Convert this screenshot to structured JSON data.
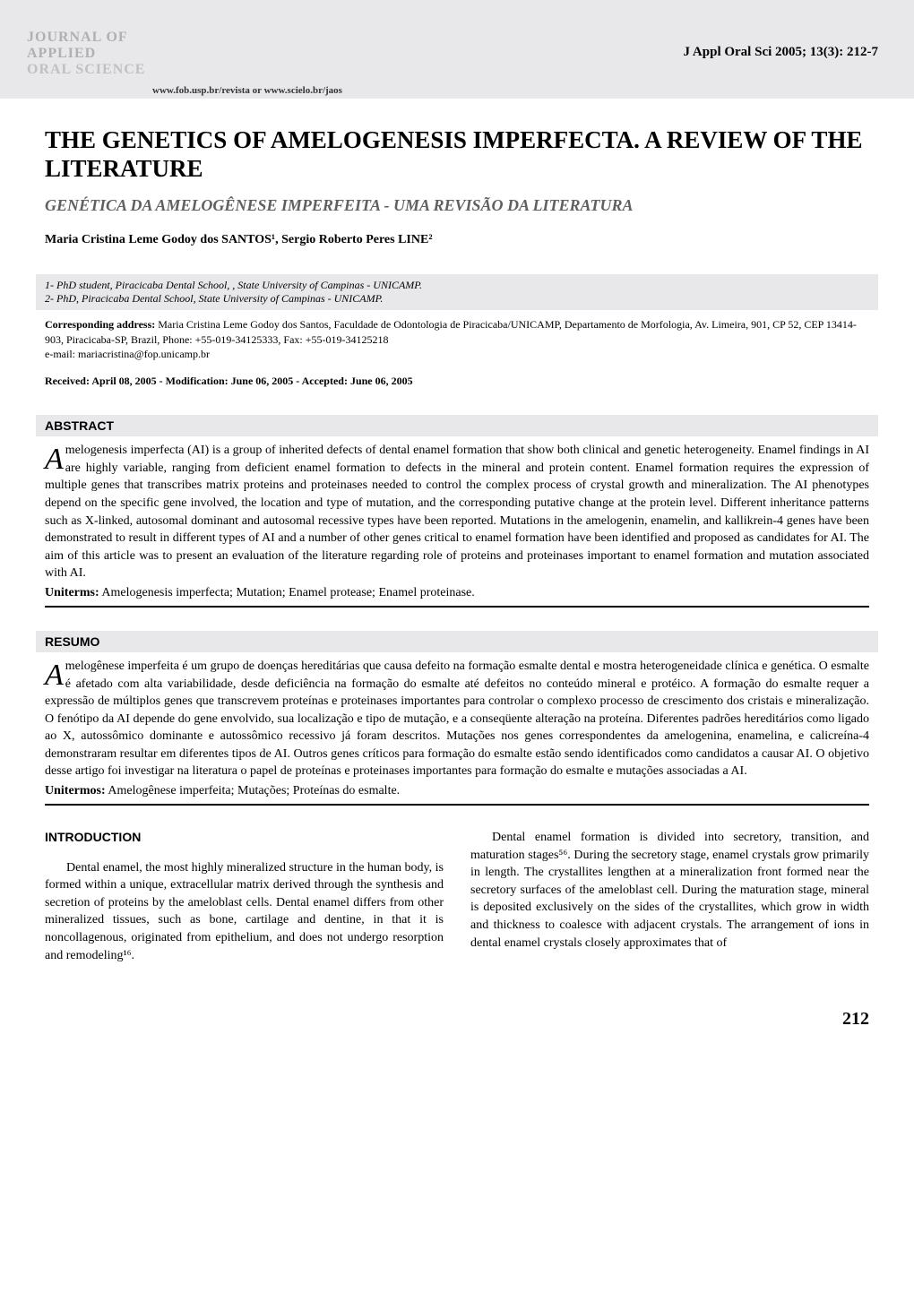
{
  "header": {
    "logo_line1": "JOURNAL OF",
    "logo_line2": "APPLIED",
    "logo_line3": "ORAL SCIENCE",
    "citation": "J Appl Oral Sci 2005; 13(3): 212-7",
    "url": "www.fob.usp.br/revista or www.scielo.br/jaos",
    "colors": {
      "band_bg": "#e8e8ea",
      "logo_gray": "#b0b0b0"
    }
  },
  "title": "THE GENETICS OF AMELOGENESIS IMPERFECTA. A REVIEW OF THE LITERATURE",
  "subtitle": "GENÉTICA DA AMELOGÊNESE IMPERFEITA - UMA REVISÃO DA LITERATURA",
  "authors": "Maria Cristina Leme Godoy dos SANTOS¹, Sergio Roberto Peres LINE²",
  "affiliations": [
    "1- PhD student, Piracicaba Dental School, , State University of Campinas  - UNICAMP.",
    "2- PhD, Piracicaba Dental School, State University of Campinas - UNICAMP."
  ],
  "corresponding": {
    "label": "Corresponding address:",
    "text": " Maria Cristina Leme Godoy dos Santos, Faculdade de Odontologia de Piracicaba/UNICAMP, Departamento de Morfologia, Av. Limeira, 901, CP 52, CEP 13414-903, Piracicaba-SP, Brazil, Phone: +55-019-34125333,  Fax: +55-019-34125218",
    "email": "e-mail: mariacristina@fop.unicamp.br"
  },
  "dates": "Received: April 08, 2005 - Modification: June 06, 2005 - Accepted: June 06, 2005",
  "abstract": {
    "header": "ABSTRACT",
    "body": "melogenesis imperfecta (AI) is a group of inherited defects of dental enamel formation that show both clinical and genetic heterogeneity. Enamel findings in AI are highly variable, ranging from deficient enamel formation to defects in the mineral and protein content. Enamel formation requires the expression of multiple genes that transcribes matrix proteins and proteinases needed to control the complex process of crystal growth and mineralization. The AI phenotypes depend on the specific gene involved, the location and type of mutation, and the corresponding putative change at the protein level. Different inheritance patterns such as X-linked, autosomal dominant and autosomal recessive types have been reported. Mutations in the amelogenin, enamelin, and kallikrein-4 genes have been demonstrated to result in different types of AI and a number of other genes critical to enamel formation have been identified and proposed as candidates for AI. The aim of this article was to present an evaluation of the literature regarding role of proteins and proteinases important to enamel formation and mutation associated with AI.",
    "uniterms_label": "Uniterms:",
    "uniterms": " Amelogenesis imperfecta; Mutation; Enamel protease; Enamel proteinase."
  },
  "resumo": {
    "header": "RESUMO",
    "body": "melogênese imperfeita é um grupo de doenças hereditárias que causa defeito na formação esmalte dental e mostra heterogeneidade clínica e genética. O esmalte é afetado com alta variabilidade, desde deficiência na formação do esmalte até defeitos no conteúdo mineral e protéico. A formação do esmalte requer a expressão de múltiplos genes que transcrevem proteínas e proteinases importantes para controlar o complexo processo de crescimento dos cristais e mineralização. O fenótipo da AI depende do gene envolvido, sua localização e tipo de mutação, e a conseqüente alteração na proteína. Diferentes padrões hereditários como ligado ao X, autossômico dominante e autossômico recessivo já foram descritos. Mutações nos genes correspondentes da amelogenina, enamelina, e calicreína-4 demonstraram resultar em diferentes tipos de AI. Outros genes críticos para formação do esmalte estão sendo identificados como candidatos a causar AI. O objetivo desse artigo foi investigar na literatura o papel de proteínas e proteinases importantes para formação do esmalte e mutações associadas a AI.",
    "unitermos_label": "Unitermos:",
    "unitermos": " Amelogênese imperfeita; Mutações; Proteínas do esmalte."
  },
  "introduction": {
    "header": "INTRODUCTION",
    "col1": "Dental enamel, the most highly mineralized structure in the human body, is formed within a unique, extracellular matrix derived through the synthesis and secretion of proteins by the ameloblast cells. Dental enamel differs from other mineralized tissues, such as bone, cartilage and dentine, in that it is noncollagenous, originated from epithelium, and does not undergo resorption and remodeling¹⁶.",
    "col2": "Dental enamel formation is divided into secretory, transition, and maturation stages⁵⁶. During the secretory stage, enamel crystals grow primarily in length. The crystallites lengthen at a mineralization front formed near the secretory surfaces of the ameloblast cell. During the maturation stage, mineral is deposited exclusively on the sides of the crystallites, which grow in width and thickness to coalesce with adjacent crystals. The arrangement of ions in dental enamel crystals closely approximates that of"
  },
  "page_number": "212",
  "typography": {
    "title_fontsize": 27,
    "subtitle_fontsize": 18,
    "body_fontsize": 14,
    "small_fontsize": 12,
    "dropcap_fontsize": 34
  }
}
